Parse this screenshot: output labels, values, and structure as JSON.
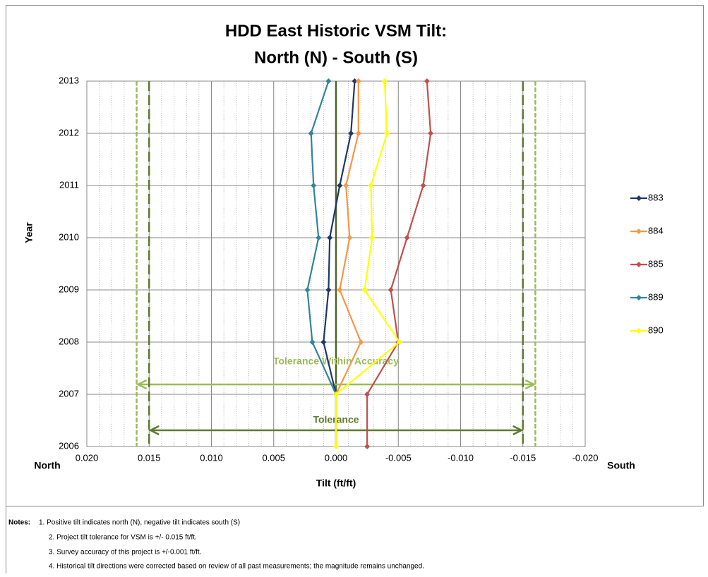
{
  "chart_data": {
    "type": "line",
    "title": [
      "HDD East Historic VSM Tilt:",
      "North (N) - South (S)"
    ],
    "x_label": "Tilt (ft/ft)",
    "y_label": "Year",
    "x_end_labels": [
      "North",
      "South"
    ],
    "y": [
      2006,
      2007,
      2008,
      2009,
      2010,
      2011,
      2012,
      2013
    ],
    "series": [
      {
        "name": "883",
        "color": "#1f3864",
        "values": [
          null,
          0,
          0.001,
          0.0006,
          0.0005,
          -0.0003,
          -0.0012,
          -0.0015
        ]
      },
      {
        "name": "884",
        "color": "#f79646",
        "values": [
          null,
          0,
          -0.002,
          -0.0003,
          -0.0011,
          -0.0008,
          -0.0018,
          -0.0018
        ]
      },
      {
        "name": "885",
        "color": "#c0504d",
        "values": [
          -0.0025,
          -0.0025,
          -0.005,
          -0.0044,
          -0.0057,
          -0.007,
          -0.0076,
          -0.0073
        ]
      },
      {
        "name": "889",
        "color": "#31859c",
        "values": [
          null,
          0,
          0.0019,
          0.0023,
          0.0014,
          0.0018,
          0.002,
          0.0006
        ]
      },
      {
        "name": "890",
        "color": "#ffff00",
        "values": [
          0,
          0,
          -0.0051,
          -0.0023,
          -0.0029,
          -0.0028,
          -0.0041,
          -0.0039
        ]
      }
    ],
    "xlim": [
      0.02,
      -0.02
    ],
    "xticks": [
      {
        "value": 0.02,
        "label": "0.020"
      },
      {
        "value": 0.015,
        "label": "0.015"
      },
      {
        "value": 0.01,
        "label": "0.010"
      },
      {
        "value": 0.005,
        "label": "0.005"
      },
      {
        "value": 0,
        "label": "0.000"
      },
      {
        "value": -0.005,
        "label": "-0.005"
      },
      {
        "value": -0.01,
        "label": "-0.010"
      },
      {
        "value": -0.015,
        "label": "-0.015"
      },
      {
        "value": -0.02,
        "label": "-0.020"
      }
    ],
    "ylim": [
      2006,
      2013
    ],
    "yticks": [
      2006,
      2007,
      2008,
      2009,
      2010,
      2011,
      2012,
      2013
    ],
    "grid": true,
    "minor_grid": 0.001,
    "zero_line_color": "#4f6228",
    "legend": "right",
    "reference_lines": [
      {
        "name": "Tolerance Within Accuracy",
        "values": [
          0.016,
          -0.016
        ],
        "color": "#9bbb59",
        "dash": "short"
      },
      {
        "name": "Tolerance",
        "values": [
          0.015,
          -0.015
        ],
        "color": "#5f7a2e",
        "dash": "long"
      }
    ]
  },
  "notes": {
    "label": "Notes:",
    "items": [
      "1. Positive tilt indicates north (N), negative tilt indicates south (S)",
      "2. Project tilt tolerance for VSM is +/- 0.015 ft/ft.",
      "3. Survey accuracy of this project is +/-0.001 ft/ft.",
      "4. Historical tilt directions were corrected based on review of all past measurements; the magnitude remains unchanged."
    ]
  }
}
